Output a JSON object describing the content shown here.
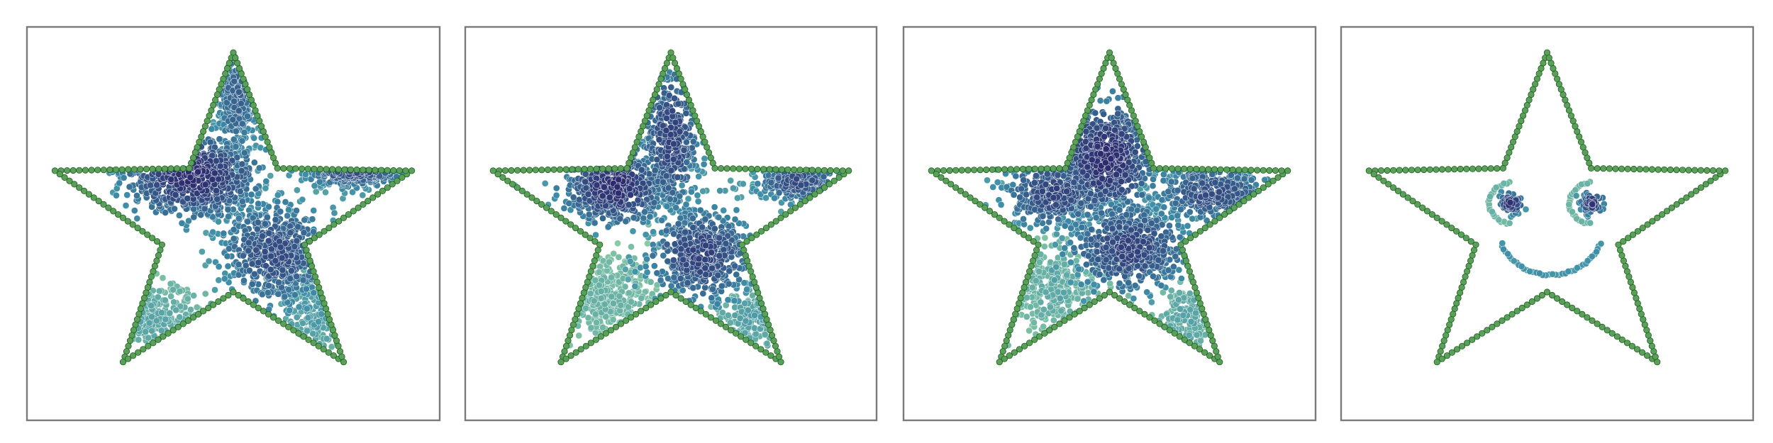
{
  "figure": {
    "palette": {
      "outline_fill": "#5aa05a",
      "outline_edge": "#1f5e1f",
      "density_low": "#8fd0a2",
      "density_mid": "#3f8fa8",
      "density_high": "#2d2a6e"
    }
  },
  "chart_data": [
    {
      "type": "scatter",
      "title": "",
      "xlabel": "",
      "ylabel": "",
      "grid": false,
      "legend": "none",
      "xlim": [
        -1.1,
        1.1
      ],
      "ylim": [
        -1.15,
        1.15
      ],
      "shape_outline": {
        "kind": "five-point-star",
        "outer_radius": 1.0,
        "inner_radius": 0.4,
        "points_per_edge": 22
      },
      "clusters": [
        {
          "cx": -0.22,
          "cy": 0.28,
          "sx": 0.17,
          "sy": 0.12,
          "n": 650,
          "density": 0.95
        },
        {
          "cx": 0.02,
          "cy": 0.72,
          "sx": 0.06,
          "sy": 0.18,
          "n": 260,
          "density": 0.7
        },
        {
          "cx": 0.65,
          "cy": 0.31,
          "sx": 0.14,
          "sy": 0.05,
          "n": 260,
          "density": 0.8
        },
        {
          "cx": 0.22,
          "cy": -0.17,
          "sx": 0.15,
          "sy": 0.16,
          "n": 550,
          "density": 0.8
        },
        {
          "cx": 0.45,
          "cy": -0.5,
          "sx": 0.1,
          "sy": 0.12,
          "n": 160,
          "density": 0.4
        },
        {
          "cx": -0.45,
          "cy": -0.55,
          "sx": 0.13,
          "sy": 0.1,
          "n": 220,
          "density": 0.3
        }
      ]
    },
    {
      "type": "scatter",
      "title": "",
      "xlabel": "",
      "ylabel": "",
      "grid": false,
      "legend": "none",
      "xlim": [
        -1.1,
        1.1
      ],
      "ylim": [
        -1.15,
        1.15
      ],
      "shape_outline": {
        "kind": "five-point-star",
        "outer_radius": 1.0,
        "inner_radius": 0.4,
        "points_per_edge": 22
      },
      "clusters": [
        {
          "cx": -0.3,
          "cy": 0.22,
          "sx": 0.13,
          "sy": 0.11,
          "n": 480,
          "density": 0.95
        },
        {
          "cx": 0.0,
          "cy": 0.5,
          "sx": 0.08,
          "sy": 0.22,
          "n": 380,
          "density": 0.85
        },
        {
          "cx": 0.68,
          "cy": 0.25,
          "sx": 0.11,
          "sy": 0.06,
          "n": 250,
          "density": 0.8
        },
        {
          "cx": 0.16,
          "cy": -0.18,
          "sx": 0.14,
          "sy": 0.14,
          "n": 520,
          "density": 0.85
        },
        {
          "cx": -0.35,
          "cy": -0.45,
          "sx": 0.14,
          "sy": 0.12,
          "n": 300,
          "density": 0.2
        },
        {
          "cx": 0.45,
          "cy": -0.55,
          "sx": 0.1,
          "sy": 0.1,
          "n": 140,
          "density": 0.35
        }
      ]
    },
    {
      "type": "scatter",
      "title": "",
      "xlabel": "",
      "ylabel": "",
      "grid": false,
      "legend": "none",
      "xlim": [
        -1.1,
        1.1
      ],
      "ylim": [
        -1.15,
        1.15
      ],
      "shape_outline": {
        "kind": "five-point-star",
        "outer_radius": 1.0,
        "inner_radius": 0.4,
        "points_per_edge": 22
      },
      "clusters": [
        {
          "cx": -0.02,
          "cy": 0.38,
          "sx": 0.13,
          "sy": 0.17,
          "n": 620,
          "density": 0.95
        },
        {
          "cx": -0.3,
          "cy": 0.18,
          "sx": 0.13,
          "sy": 0.1,
          "n": 380,
          "density": 0.85
        },
        {
          "cx": 0.55,
          "cy": 0.18,
          "sx": 0.15,
          "sy": 0.09,
          "n": 380,
          "density": 0.8
        },
        {
          "cx": 0.1,
          "cy": -0.14,
          "sx": 0.16,
          "sy": 0.13,
          "n": 560,
          "density": 0.85
        },
        {
          "cx": -0.28,
          "cy": -0.38,
          "sx": 0.14,
          "sy": 0.13,
          "n": 300,
          "density": 0.25
        },
        {
          "cx": 0.42,
          "cy": -0.55,
          "sx": 0.1,
          "sy": 0.11,
          "n": 140,
          "density": 0.3
        }
      ]
    },
    {
      "type": "scatter",
      "title": "",
      "xlabel": "",
      "ylabel": "",
      "grid": false,
      "legend": "none",
      "xlim": [
        -1.1,
        1.1
      ],
      "ylim": [
        -1.15,
        1.15
      ],
      "shape_outline": {
        "kind": "five-point-star",
        "outer_radius": 1.0,
        "inner_radius": 0.4,
        "points_per_edge": 22
      },
      "clusters": [
        {
          "cx": -0.19,
          "cy": 0.12,
          "sx": 0.03,
          "sy": 0.03,
          "n": 55,
          "density": 0.95
        },
        {
          "cx": 0.24,
          "cy": 0.12,
          "sx": 0.03,
          "sy": 0.03,
          "n": 55,
          "density": 0.95
        }
      ],
      "arcs": [
        {
          "name": "left-eye-ring",
          "cx": -0.19,
          "cy": 0.12,
          "r": 0.12,
          "from_deg": 95,
          "to_deg": 265,
          "n": 24,
          "density": 0.2
        },
        {
          "name": "right-eye-ring",
          "cx": 0.24,
          "cy": 0.12,
          "r": 0.12,
          "from_deg": 95,
          "to_deg": 265,
          "n": 24,
          "density": 0.2
        },
        {
          "name": "smile",
          "cx": 0.02,
          "cy": -0.02,
          "r": 0.28,
          "from_deg": 200,
          "to_deg": 340,
          "n": 40,
          "density": 0.45
        }
      ]
    }
  ]
}
